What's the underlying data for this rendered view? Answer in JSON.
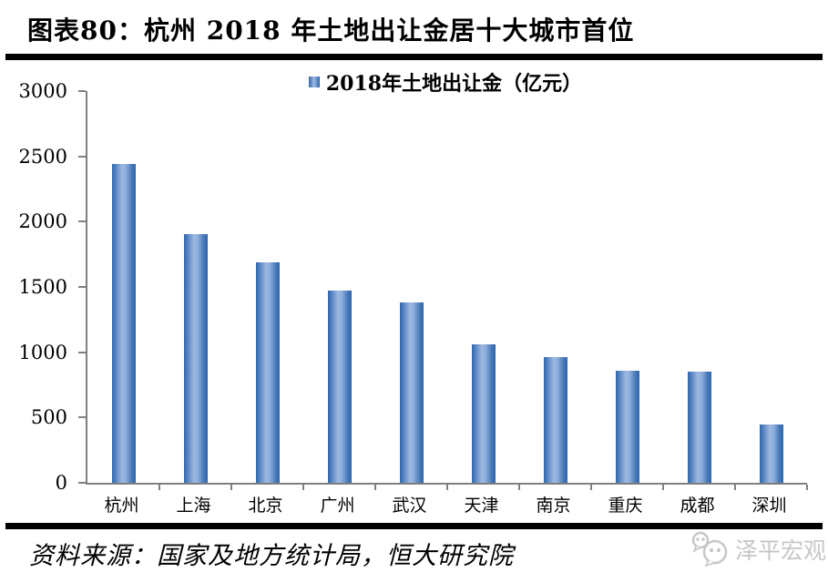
{
  "header": {
    "title": "图表80：杭州 2018 年土地出让金居十大城市首位"
  },
  "legend": {
    "label": "2018年土地出让金（亿元）"
  },
  "chart_data": {
    "type": "bar",
    "title": "2018年土地出让金（亿元）",
    "categories": [
      "杭州",
      "上海",
      "北京",
      "广州",
      "武汉",
      "天津",
      "南京",
      "重庆",
      "成都",
      "深圳"
    ],
    "values": [
      2440,
      1905,
      1685,
      1470,
      1380,
      1060,
      960,
      860,
      850,
      450
    ],
    "xlabel": "",
    "ylabel": "",
    "ylim": [
      0,
      3000
    ],
    "y_ticks": [
      3000,
      2500,
      2000,
      1500,
      1000,
      500,
      0
    ],
    "grid": false,
    "legend_position": "top-center",
    "bar_color_edge": "#2E66AD",
    "bar_color_center": "#9CB8E0",
    "axis_color": "#7F7F7F"
  },
  "footer": {
    "source": "资料来源：国家及地方统计局，恒大研究院",
    "watermark": "泽平宏观"
  },
  "colors": {
    "rule": "#000000",
    "watermark_gray": "#C6C6C6"
  }
}
